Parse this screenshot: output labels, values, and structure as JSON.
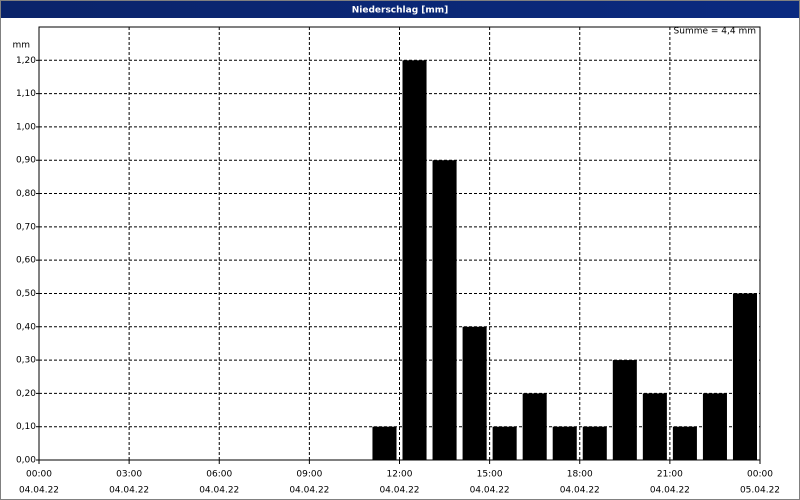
{
  "chart_data": {
    "type": "bar",
    "title": "Niederschlag [mm]",
    "annotation": "Summe = 4,4 mm",
    "y_label": "mm",
    "x": [
      11,
      12,
      13,
      14,
      15,
      16,
      17,
      18,
      19,
      20,
      21,
      22,
      23
    ],
    "values": [
      0.1,
      1.2,
      0.9,
      0.4,
      0.1,
      0.2,
      0.1,
      0.1,
      0.3,
      0.2,
      0.1,
      0.2,
      0.5
    ],
    "color": "#000000",
    "xlim": [
      0,
      24
    ],
    "xticks": [
      {
        "value": 0,
        "label": "00:00"
      },
      {
        "value": 3,
        "label": "03:00"
      },
      {
        "value": 6,
        "label": "06:00"
      },
      {
        "value": 9,
        "label": "09:00"
      },
      {
        "value": 12,
        "label": "12:00"
      },
      {
        "value": 15,
        "label": "15:00"
      },
      {
        "value": 18,
        "label": "18:00"
      },
      {
        "value": 21,
        "label": "21:00"
      },
      {
        "value": 24,
        "label": "00:00"
      }
    ],
    "xtick_dates": [
      "04.04.22",
      "04.04.22",
      "04.04.22",
      "04.04.22",
      "04.04.22",
      "04.04.22",
      "04.04.22",
      "04.04.22",
      "05.04.22"
    ],
    "ylim": [
      0,
      1.3
    ],
    "yticks": [
      {
        "value": 0,
        "label": "0,00"
      },
      {
        "value": 0.1,
        "label": "0,10"
      },
      {
        "value": 0.2,
        "label": "0,20"
      },
      {
        "value": 0.3,
        "label": "0,30"
      },
      {
        "value": 0.4,
        "label": "0,40"
      },
      {
        "value": 0.5,
        "label": "0,50"
      },
      {
        "value": 0.6,
        "label": "0,60"
      },
      {
        "value": 0.7,
        "label": "0,70"
      },
      {
        "value": 0.8,
        "label": "0,80"
      },
      {
        "value": 0.9,
        "label": "0,90"
      },
      {
        "value": 1.0,
        "label": "1,00"
      },
      {
        "value": 1.1,
        "label": "1,10"
      },
      {
        "value": 1.2,
        "label": "1,20"
      }
    ],
    "grid": true
  }
}
